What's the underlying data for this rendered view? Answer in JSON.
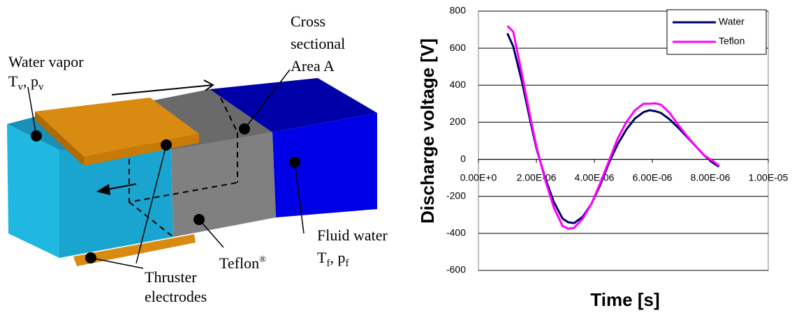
{
  "diagram": {
    "cross_section": [
      "Cross",
      "sectional",
      "Area A"
    ],
    "water_vapor": {
      "title": "Water vapor",
      "symbol": [
        "T",
        "v",
        ", p",
        "v"
      ]
    },
    "electrodes": [
      "Thruster",
      "electrodes"
    ],
    "teflon": {
      "name": "Teflon",
      "mark": "®"
    },
    "fluid_water": {
      "title": "Fluid water",
      "symbol": [
        "T",
        "f",
        ", p",
        "f"
      ]
    }
  },
  "chart_data": {
    "type": "line",
    "xlabel": "Time [s]",
    "ylabel": "Discharge voltage [V]",
    "x": [
      1e-06,
      1.2e-06,
      1.5e-06,
      1.8e-06,
      2e-06,
      2.3e-06,
      2.6e-06,
      2.9e-06,
      3.1e-06,
      3.3e-06,
      3.6e-06,
      3.9e-06,
      4.2e-06,
      4.5e-06,
      4.8e-06,
      5.1e-06,
      5.4e-06,
      5.7e-06,
      5.9e-06,
      6.1e-06,
      6.3e-06,
      6.6e-06,
      6.9e-06,
      7.2e-06,
      7.5e-06,
      7.8e-06,
      8.1e-06,
      8.3e-06
    ],
    "series": [
      {
        "name": "Water",
        "color": "#000066",
        "values": [
          680,
          610,
          420,
          200,
          60,
          -100,
          -230,
          -320,
          -340,
          -345,
          -310,
          -240,
          -140,
          -20,
          80,
          160,
          220,
          255,
          265,
          260,
          250,
          215,
          170,
          120,
          70,
          20,
          -20,
          -40
        ]
      },
      {
        "name": "Teflon",
        "color": "#ff00ff",
        "values": [
          720,
          690,
          460,
          220,
          70,
          -110,
          -260,
          -360,
          -375,
          -370,
          -320,
          -240,
          -130,
          -10,
          110,
          200,
          265,
          300,
          300,
          302,
          295,
          250,
          185,
          125,
          70,
          20,
          -10,
          -35
        ]
      }
    ],
    "xlim": [
      0,
      1e-05
    ],
    "xticks": [
      {
        "value": 0,
        "label": "0.00E+0"
      },
      {
        "value": 2e-06,
        "label": "2.00E-06"
      },
      {
        "value": 4e-06,
        "label": "4.00E-06"
      },
      {
        "value": 6e-06,
        "label": "6.00E-06"
      },
      {
        "value": 8e-06,
        "label": "8.00E-06"
      },
      {
        "value": 1e-05,
        "label": "1.00E-05"
      }
    ],
    "ylim": [
      -600,
      800
    ],
    "yticks": [
      -600,
      -400,
      -200,
      0,
      200,
      400,
      600,
      800
    ],
    "grid": true,
    "legend": "upper right"
  }
}
